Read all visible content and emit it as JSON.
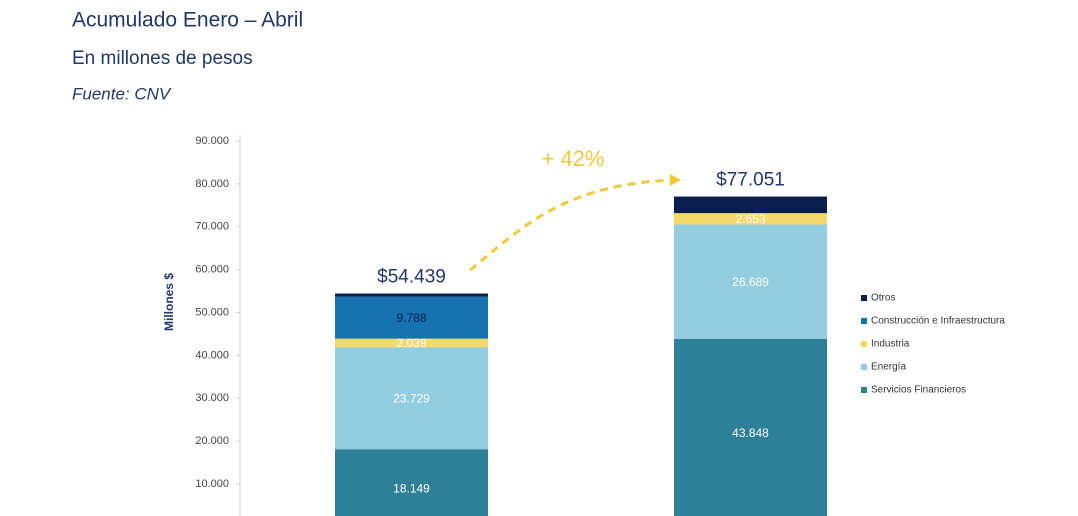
{
  "title": "Acumulado Enero – Abril",
  "subtitle": "En millones de pesos",
  "source": "Fuente: CNV",
  "chart_data": {
    "type": "stacked_bar",
    "y_label": "Millones $",
    "categories": [
      null,
      null
    ],
    "series": [
      {
        "name": "Servicios Financieros",
        "color": "#2e7f98",
        "values": [
          18149,
          43848
        ],
        "value_labels": [
          "18.149",
          "43.848"
        ]
      },
      {
        "name": "Energía",
        "color": "#92cde0",
        "values": [
          23729,
          26689
        ],
        "value_labels": [
          "23.729",
          "26.689"
        ]
      },
      {
        "name": "Industria",
        "color": "#f3d86a",
        "values": [
          2039,
          2653
        ],
        "value_labels": [
          "2.039",
          "2.653"
        ]
      },
      {
        "name": "Construcción e Infraestructura",
        "color": "#1673b0",
        "values": [
          9788,
          0
        ],
        "value_labels": [
          "9.788",
          null
        ]
      },
      {
        "name": "Otros",
        "color": "#0b1f4e",
        "values": [
          734,
          3861
        ],
        "value_labels": [
          null,
          null
        ]
      }
    ],
    "totals": {
      "values": [
        54439,
        77051
      ],
      "value_labels": [
        "$54.439",
        "$77.051"
      ]
    },
    "annotation": "+ 42%",
    "ylim": [
      0,
      90000
    ],
    "yticks": [
      {
        "value": 10000,
        "label": "10.000"
      },
      {
        "value": 20000,
        "label": "20.000"
      },
      {
        "value": 30000,
        "label": "30.000"
      },
      {
        "value": 40000,
        "label": "40.000"
      },
      {
        "value": 50000,
        "label": "50.000"
      },
      {
        "value": 60000,
        "label": "60.000"
      },
      {
        "value": 70000,
        "label": "70.000"
      },
      {
        "value": 80000,
        "label": "80.000"
      },
      {
        "value": 90000,
        "label": "90.000"
      }
    ]
  }
}
